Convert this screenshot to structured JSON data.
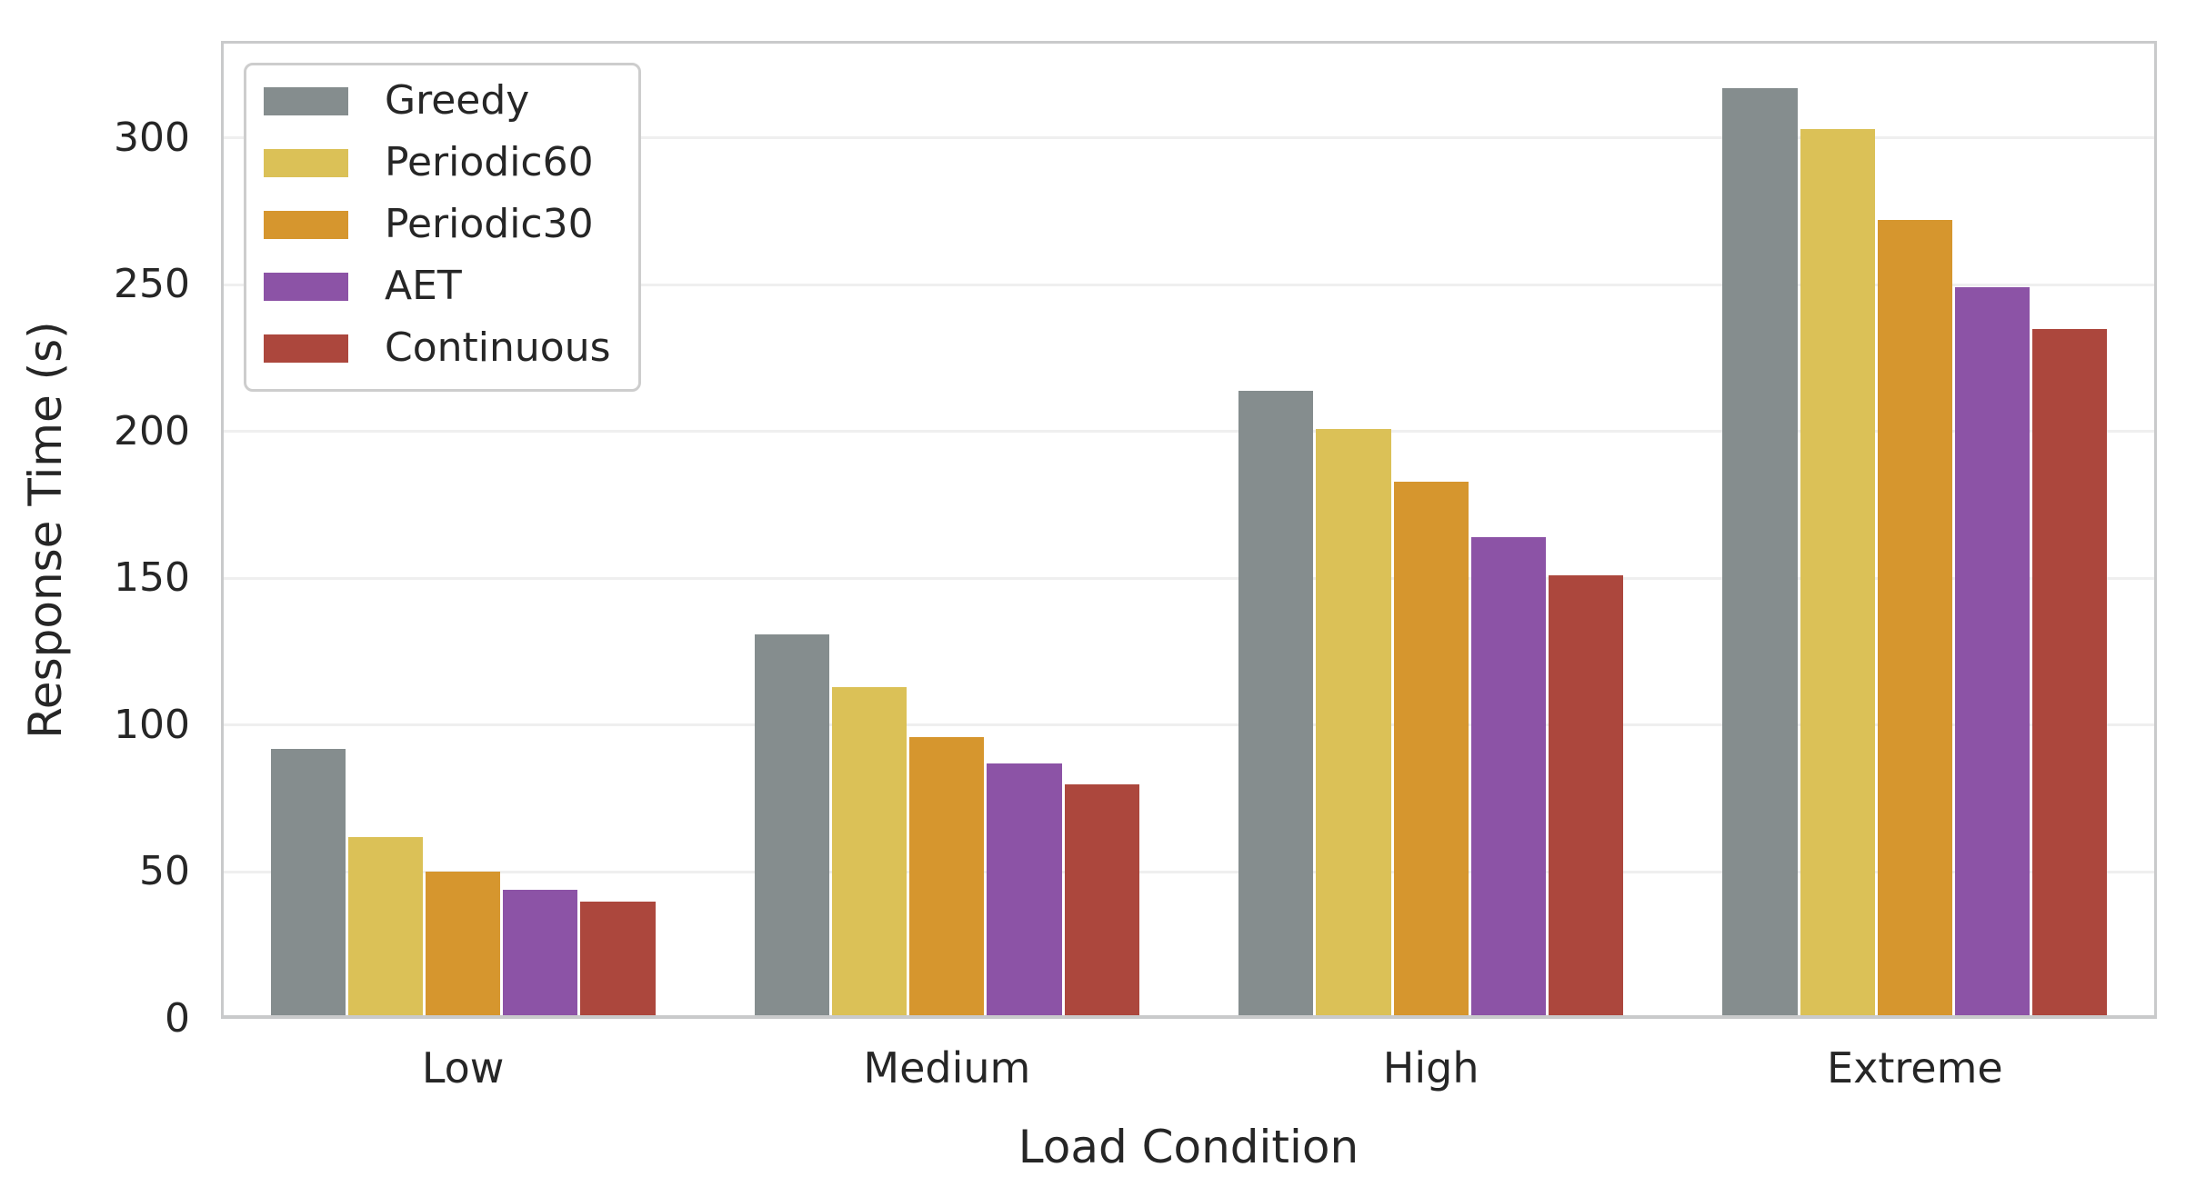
{
  "chart_data": {
    "type": "bar",
    "title": "",
    "xlabel": "Load Condition",
    "ylabel": "Response Time (s)",
    "categories": [
      "Low",
      "Medium",
      "High",
      "Extreme"
    ],
    "series": [
      {
        "name": "Greedy",
        "color": "#858D8E",
        "values": [
          92,
          131,
          214,
          317
        ]
      },
      {
        "name": "Periodic60",
        "color": "#DBC157",
        "values": [
          62,
          113,
          201,
          303
        ]
      },
      {
        "name": "Periodic30",
        "color": "#D6962E",
        "values": [
          50,
          96,
          183,
          272
        ]
      },
      {
        "name": "AET",
        "color": "#8C53A6",
        "values": [
          44,
          87,
          164,
          249
        ]
      },
      {
        "name": "Continuous",
        "color": "#AC473D",
        "values": [
          40,
          80,
          151,
          235
        ]
      }
    ],
    "yticks": [
      0,
      50,
      100,
      150,
      200,
      250,
      300
    ],
    "ylim": [
      0,
      333
    ],
    "grid": "horizontal",
    "legend_position": "upper-left",
    "group_width_fraction": 0.8
  },
  "style_colors": {
    "text": "#262626",
    "grid": "#EFEFEF",
    "spine": "#C9CACB",
    "background": "#FFFFFF"
  }
}
